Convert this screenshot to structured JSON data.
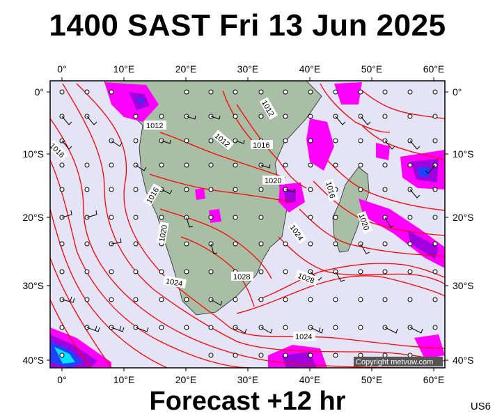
{
  "title": "1400 SAST Fri 13 Jun 2025",
  "footer": "Forecast +12 hr",
  "code": "US6",
  "copyright": "Copyright metvuw.com",
  "axes": {
    "lon_ticks": [
      "0°",
      "10°E",
      "20°E",
      "30°E",
      "40°E",
      "50°E",
      "60°E"
    ],
    "lat_ticks": [
      "0°",
      "10°S",
      "20°S",
      "30°S",
      "40°S"
    ]
  },
  "isobar_labels": [
    "1012",
    "1012",
    "1016",
    "1012",
    "1016",
    "1020",
    "1016",
    "1016",
    "1020",
    "1024",
    "1020",
    "1024",
    "1028",
    "1028",
    "1024"
  ],
  "colors": {
    "ocean": "#e4e4f6",
    "land": "#a9bfa5",
    "isobar": "#ff0000",
    "rain_light": "#ff00ff",
    "rain_mid": "#a000e0",
    "rain_heavy": "#2040ff",
    "rain_extreme": "#00e0ff"
  }
}
